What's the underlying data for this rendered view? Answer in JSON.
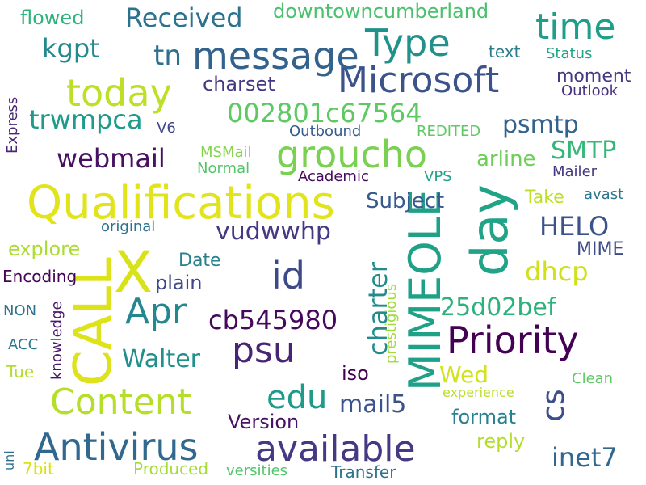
{
  "words": [
    {
      "text": "Qualifications",
      "color": "#e2e41b"
    },
    {
      "text": "Microsoft",
      "color": "#3b528b"
    },
    {
      "text": "Antivirus",
      "color": "#31688e"
    },
    {
      "text": "available",
      "color": "#443983"
    },
    {
      "text": "Priority",
      "color": "#440154"
    },
    {
      "text": "message",
      "color": "#33638d"
    },
    {
      "text": "groucho",
      "color": "#7ad151"
    },
    {
      "text": "Content",
      "color": "#b5de2b"
    },
    {
      "text": "today",
      "color": "#bddf26"
    },
    {
      "text": "Type",
      "color": "#21918c"
    },
    {
      "text": "time",
      "color": "#1f9e89"
    },
    {
      "text": "day",
      "color": "#20a386"
    },
    {
      "text": "X",
      "color": "#d8e219"
    },
    {
      "text": "CALL",
      "color": "#dde318"
    },
    {
      "text": "MIMEOLE",
      "color": "#1fa187"
    },
    {
      "text": "Apr",
      "color": "#24868e"
    },
    {
      "text": "psu",
      "color": "#482475"
    },
    {
      "text": "id",
      "color": "#3e4989"
    },
    {
      "text": "edu",
      "color": "#1f9a8a"
    },
    {
      "text": "Received",
      "color": "#2c728e"
    },
    {
      "text": "downtowncumberland",
      "color": "#4ac16d"
    },
    {
      "text": "flowed",
      "color": "#2eb37c"
    },
    {
      "text": "kgpt",
      "color": "#23898e"
    },
    {
      "text": "tn",
      "color": "#2d708e"
    },
    {
      "text": "002801c67564",
      "color": "#5ec962"
    },
    {
      "text": "trwmpca",
      "color": "#1e9b8a"
    },
    {
      "text": "charset",
      "color": "#453781"
    },
    {
      "text": "psmtp",
      "color": "#33638d"
    },
    {
      "text": "moment",
      "color": "#443a83"
    },
    {
      "text": "text",
      "color": "#287d8e"
    },
    {
      "text": "Status",
      "color": "#20a486"
    },
    {
      "text": "Outlook",
      "color": "#46327e"
    },
    {
      "text": "Express",
      "color": "#482576"
    },
    {
      "text": "V6",
      "color": "#404688"
    },
    {
      "text": "Outbound",
      "color": "#365c8d"
    },
    {
      "text": "REDITED",
      "color": "#5ec962"
    },
    {
      "text": "webmail",
      "color": "#471063"
    },
    {
      "text": "SMTP",
      "color": "#35b779"
    },
    {
      "text": "arline",
      "color": "#6ece58"
    },
    {
      "text": "MSMail",
      "color": "#84d44b"
    },
    {
      "text": "Normal",
      "color": "#52c569"
    },
    {
      "text": "Academic",
      "color": "#46085c"
    },
    {
      "text": "VPS",
      "color": "#1fa188"
    },
    {
      "text": "Mailer",
      "color": "#453882"
    },
    {
      "text": "Subject",
      "color": "#375a8c"
    },
    {
      "text": "Take",
      "color": "#bddf26"
    },
    {
      "text": "avast",
      "color": "#2a768e"
    },
    {
      "text": "HELO",
      "color": "#3b528b"
    },
    {
      "text": "MIME",
      "color": "#3e4a89"
    },
    {
      "text": "original",
      "color": "#2c718e"
    },
    {
      "text": "vudwwhp",
      "color": "#453781"
    },
    {
      "text": "charter",
      "color": "#228c8d"
    },
    {
      "text": "explore",
      "color": "#addc30"
    },
    {
      "text": "Date",
      "color": "#27808e"
    },
    {
      "text": "plain",
      "color": "#3f4788"
    },
    {
      "text": "dhcp",
      "color": "#d0e11c"
    },
    {
      "text": "cs",
      "color": "#3c4f8a"
    },
    {
      "text": "Encoding",
      "color": "#450559"
    },
    {
      "text": "prestigious",
      "color": "#a2da37"
    },
    {
      "text": "25d02bef",
      "color": "#2db27d"
    },
    {
      "text": "knowledge",
      "color": "#481769"
    },
    {
      "text": "NON",
      "color": "#2c738e"
    },
    {
      "text": "cb545980",
      "color": "#46085c"
    },
    {
      "text": "ACC",
      "color": "#2a788e"
    },
    {
      "text": "Walter",
      "color": "#21908d"
    },
    {
      "text": "Tue",
      "color": "#b2dd2d"
    },
    {
      "text": "iso",
      "color": "#440154"
    },
    {
      "text": "Wed",
      "color": "#d2e21b"
    },
    {
      "text": "Clean",
      "color": "#5ec962"
    },
    {
      "text": "mail5",
      "color": "#3b528b"
    },
    {
      "text": "experience",
      "color": "#bade28"
    },
    {
      "text": "Version",
      "color": "#471164"
    },
    {
      "text": "format",
      "color": "#26828e"
    },
    {
      "text": "reply",
      "color": "#b5de2b"
    },
    {
      "text": "inet7",
      "color": "#31688e"
    },
    {
      "text": "uni",
      "color": "#2d708e"
    },
    {
      "text": "7bit",
      "color": "#d8e219"
    },
    {
      "text": "Produced",
      "color": "#a5db36"
    },
    {
      "text": "versities",
      "color": "#52c569"
    },
    {
      "text": "Transfer",
      "color": "#2d708e"
    }
  ]
}
